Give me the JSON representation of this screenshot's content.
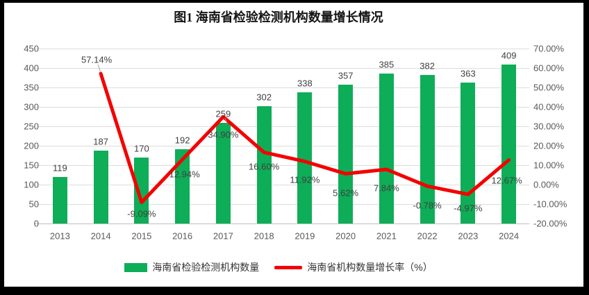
{
  "title": "图1 海南省检验检测机构数量增长情况",
  "colors": {
    "bar": "#0ead57",
    "line": "#f40000",
    "grid": "#dcdcdc",
    "axis_line": "#bfbfbf",
    "tick_text": "#595959",
    "value_text": "#404040",
    "leader": "#a0a0a0",
    "chart_bg": "#ffffff",
    "frame_bg": "#000000"
  },
  "chart_data": {
    "type": "combo-bar-line",
    "title": "图1 海南省检验检测机构数量增长情况",
    "categories": [
      "2013",
      "2014",
      "2015",
      "2016",
      "2017",
      "2018",
      "2019",
      "2020",
      "2021",
      "2022",
      "2023",
      "2024"
    ],
    "series": [
      {
        "name": "海南省检验检测机构数量",
        "type": "bar",
        "axis": "left",
        "values": [
          119,
          187,
          170,
          192,
          259,
          302,
          338,
          357,
          385,
          382,
          363,
          409
        ],
        "labels": [
          "119",
          "187",
          "170",
          "192",
          "259",
          "302",
          "338",
          "357",
          "385",
          "382",
          "363",
          "409"
        ]
      },
      {
        "name": "海南省机构数量增长率（%）",
        "type": "line",
        "axis": "right",
        "values": [
          null,
          57.14,
          -9.09,
          12.94,
          34.9,
          16.6,
          11.92,
          5.62,
          7.84,
          -0.78,
          -4.97,
          12.67
        ],
        "labels": [
          "",
          "57.14%",
          "-9.09%",
          "12.94%",
          "34.90%",
          "16.60%",
          "11.92%",
          "5.62%",
          "7.84%",
          "-0.78%",
          "-4.97%",
          "12.67%"
        ]
      }
    ],
    "left_axis": {
      "min": 0,
      "max": 450,
      "step": 50,
      "ticks": [
        "450",
        "400",
        "350",
        "300",
        "250",
        "200",
        "150",
        "100",
        "50",
        "0"
      ]
    },
    "right_axis": {
      "min": -20,
      "max": 70,
      "step": 10,
      "ticks": [
        "70.00%",
        "60.00%",
        "50.00%",
        "40.00%",
        "30.00%",
        "20.00%",
        "10.00%",
        "0.00%",
        "-10.00%",
        "-20.00%"
      ]
    },
    "grid": true,
    "legend_position": "bottom"
  },
  "legend": {
    "items": [
      {
        "label": "海南省检验检测机构数量",
        "swatch": "bar"
      },
      {
        "label": "海南省机构数量增长率（%）",
        "swatch": "line"
      }
    ]
  }
}
